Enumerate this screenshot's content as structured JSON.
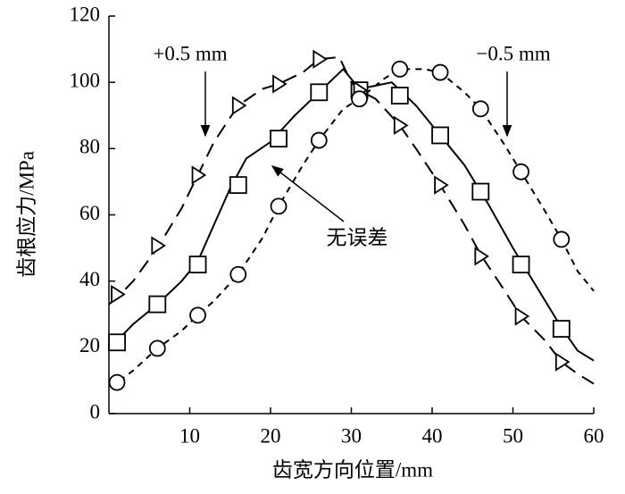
{
  "chart_data": {
    "type": "line",
    "xlabel": "齿宽方向位置/mm",
    "ylabel": "齿根应力/MPa",
    "xlim": [
      0,
      60
    ],
    "ylim": [
      0,
      120
    ],
    "xticks": [
      10,
      20,
      30,
      40,
      50,
      60
    ],
    "yticks": [
      0,
      20,
      40,
      60,
      80,
      100,
      120
    ],
    "series": [
      {
        "name": "无误差",
        "color": "#000000",
        "dash": "none",
        "marker": "square",
        "x": [
          0,
          1,
          3,
          6,
          9,
          11,
          13,
          15,
          17,
          20,
          23,
          26,
          29,
          31,
          33,
          35,
          38,
          41,
          44,
          47,
          50,
          53,
          56,
          58,
          60
        ],
        "values": [
          24,
          22,
          27,
          33,
          40,
          46,
          57,
          68,
          77,
          82,
          90,
          97,
          104,
          98,
          99,
          100,
          93,
          84,
          75,
          63,
          50,
          38,
          26,
          19,
          16
        ],
        "marker_x": [
          1,
          6,
          11,
          16,
          21,
          26,
          31,
          36,
          41,
          46,
          51,
          56
        ],
        "marker_values": [
          21.5,
          33,
          45,
          69,
          83,
          97,
          97.6,
          96,
          84,
          67,
          45,
          25.6
        ]
      },
      {
        "name": "+0.5 mm",
        "color": "#000000",
        "dash": "16 9",
        "marker": "triangle",
        "x": [
          0,
          1,
          3,
          6,
          9,
          11,
          13,
          16,
          19,
          21,
          24,
          26,
          28.5,
          30,
          31,
          33,
          36,
          38,
          41,
          44,
          46,
          49,
          51,
          54,
          56,
          58,
          60
        ],
        "values": [
          33,
          35,
          40,
          50,
          62,
          72,
          82,
          93,
          98,
          99.5,
          103,
          107,
          107.6,
          100,
          97.6,
          95,
          87,
          80,
          69,
          57,
          48,
          37,
          29.4,
          22,
          15.6,
          12,
          9
        ],
        "marker_x": [
          1,
          6,
          11,
          16,
          21,
          26,
          31,
          36,
          41,
          46,
          51,
          56
        ],
        "marker_values": [
          36,
          50.7,
          72,
          93,
          99.5,
          107,
          97.6,
          87,
          69,
          47.5,
          29.4,
          15.6
        ]
      },
      {
        "name": "−0.5 mm",
        "color": "#000000",
        "dash": "7 6",
        "marker": "circle",
        "x": [
          0,
          1,
          3,
          6,
          9,
          11,
          13,
          16,
          19,
          21,
          24,
          26,
          29,
          31,
          34,
          36,
          39,
          41,
          44,
          46,
          49,
          51,
          54,
          56,
          58,
          60
        ],
        "values": [
          8.5,
          9.4,
          13,
          19.7,
          25,
          29.7,
          34,
          42,
          53,
          62.6,
          75,
          82.5,
          92,
          95,
          101,
          104,
          104,
          103,
          97,
          92,
          81,
          73,
          61,
          52.6,
          43,
          37
        ],
        "marker_x": [
          1,
          6,
          11,
          16,
          21,
          26,
          31,
          36,
          41,
          46,
          51,
          56
        ],
        "marker_values": [
          9.4,
          19.7,
          29.7,
          42,
          62.6,
          82.5,
          95,
          104,
          103,
          92,
          73,
          52.6
        ]
      }
    ]
  }
}
